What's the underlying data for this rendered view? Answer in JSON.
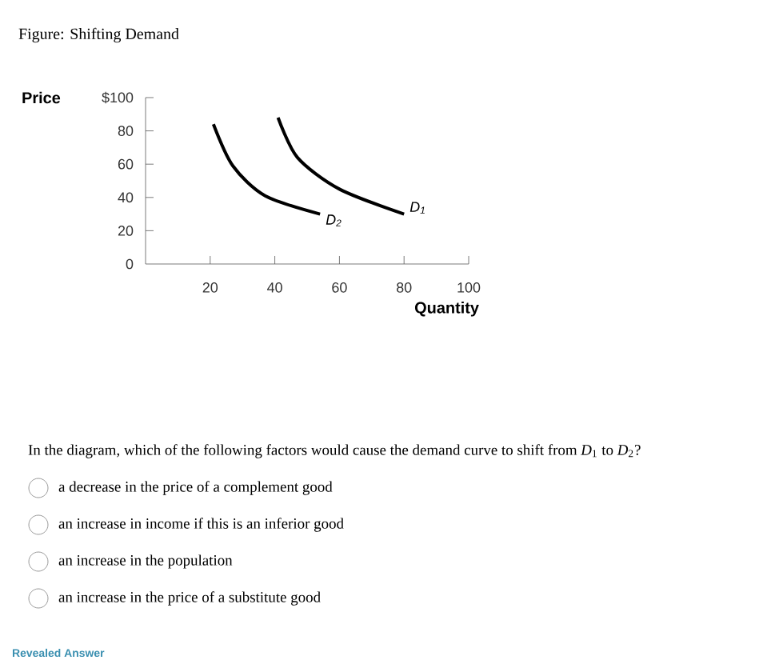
{
  "chart_data": {
    "type": "line",
    "title": "Figure: Shifting Demand",
    "xlabel": "Quantity",
    "ylabel": "Price",
    "xlim": [
      0,
      100
    ],
    "ylim": [
      0,
      100
    ],
    "xticks": [
      20,
      40,
      60,
      80,
      100
    ],
    "yticks": [
      {
        "value": 0,
        "label": "0"
      },
      20,
      40,
      60,
      80,
      {
        "value": 100,
        "label": "$100"
      }
    ],
    "series": [
      {
        "name": "*D*$_{2}$",
        "color": "#000000",
        "x": [
          21,
          27,
          37,
          54
        ],
        "values": [
          84,
          59,
          41,
          30
        ]
      },
      {
        "name": "*D*$_{1}$",
        "color": "#000000",
        "x": [
          41,
          47,
          60,
          80
        ],
        "values": [
          88,
          64,
          45,
          30
        ]
      }
    ],
    "legend": false,
    "marker": "none",
    "line_style": "solid",
    "annotations": [
      "In the diagram, which of the following factors would cause the demand curve to shift from *D*$_{1}$ to *D*$_{2}$?",
      "a decrease in the price of a complement good",
      "an increase in income if this is an inferior good",
      "an increase in the population",
      "an increase in the price of a substitute good",
      "Revealed Answer"
    ]
  }
}
